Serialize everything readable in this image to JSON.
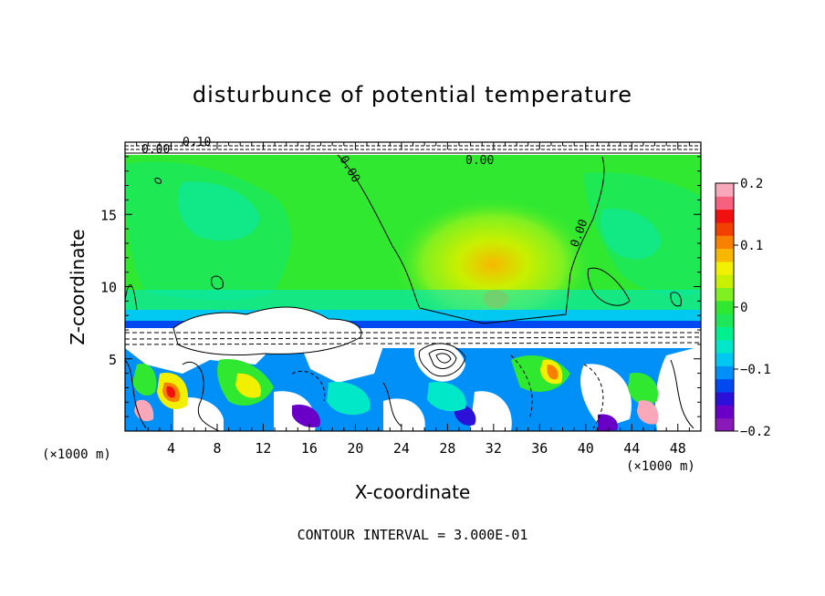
{
  "chart_data": {
    "type": "heatmap",
    "title": "disturbunce of potential temperature",
    "xlabel": "X-coordinate",
    "ylabel": "Z-coordinate",
    "x_unit": "(×1000 m)",
    "y_unit": "(×1000 m)",
    "footer": "CONTOUR INTERVAL = 3.000E-01",
    "xlim": [
      0,
      50
    ],
    "ylim": [
      0,
      20
    ],
    "x_ticks": [
      "4",
      "8",
      "12",
      "16",
      "20",
      "24",
      "28",
      "32",
      "36",
      "40",
      "44",
      "48"
    ],
    "y_ticks": [
      "5",
      "10",
      "15"
    ],
    "colorbar": {
      "range": [
        -0.2,
        0.2
      ],
      "tick_labels": [
        "0.2",
        "0.1",
        "0",
        "−0.1",
        "−0.2"
      ],
      "colors": [
        "#8a1ab8",
        "#6a00c8",
        "#2a10d8",
        "#0048f0",
        "#0090f8",
        "#00c8f0",
        "#00e8c8",
        "#00f090",
        "#1ee85a",
        "#30e830",
        "#80f020",
        "#c8f000",
        "#f0f000",
        "#f8b800",
        "#f88000",
        "#f04000",
        "#f01010",
        "#f86080",
        "#f8a8b8"
      ]
    },
    "contour_labels": [
      "0.00",
      "0.00",
      "0.00",
      "0.00",
      "0.10"
    ]
  }
}
